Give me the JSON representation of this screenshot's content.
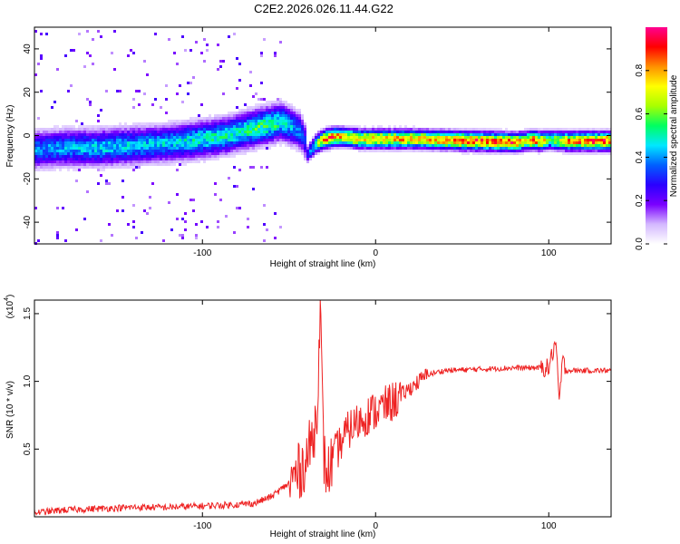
{
  "title": "C2E2.2026.026.11.44.G22",
  "chart_data": [
    {
      "type": "heatmap",
      "name": "spectrogram",
      "xlabel": "Height of straight line (km)",
      "ylabel": "Frequency (Hz)",
      "xlim": [
        -197,
        136
      ],
      "ylim": [
        -50,
        50
      ],
      "xticks": [
        -100,
        0,
        100
      ],
      "xtick_labels": [
        "-100",
        "0",
        "100"
      ],
      "yticks": [
        -40,
        -20,
        0,
        20,
        40
      ],
      "ytick_labels": [
        "-40",
        "-20",
        "0",
        "20",
        "40"
      ],
      "colorbar": {
        "label": "Normalized spectral amplitude",
        "range": [
          0,
          1
        ],
        "ticks": [
          0,
          0.2,
          0.4,
          0.6,
          0.8
        ],
        "tick_labels": [
          "0.0",
          "0.2",
          "0.4",
          "0.6",
          "0.8"
        ],
        "colormap": [
          "#ffffff",
          "#d4b8ff",
          "#7a00ff",
          "#2a00ff",
          "#0060ff",
          "#00e8ff",
          "#00ff60",
          "#a8ff00",
          "#ffff00",
          "#ff9000",
          "#ff0000",
          "#ff0090"
        ]
      },
      "ridge": {
        "x": [
          -197,
          -180,
          -160,
          -140,
          -120,
          -100,
          -90,
          -80,
          -70,
          -60,
          -55,
          -50,
          -45,
          -42,
          -40,
          -38,
          -35,
          -30,
          -25,
          -20,
          -10,
          0,
          20,
          40,
          60,
          80,
          85,
          90,
          95,
          100,
          110,
          120,
          136
        ],
        "freq": [
          -6,
          -5,
          -5,
          -4,
          -3,
          -1,
          0,
          2,
          4,
          6,
          7,
          5,
          3,
          0,
          -8,
          -6,
          -3,
          -1,
          0,
          0,
          -1,
          -1,
          -1,
          -1.5,
          -2,
          -2.5,
          -2,
          -1.5,
          -2,
          -1.5,
          -2,
          -2,
          -2
        ],
        "amplitude": [
          0.4,
          0.42,
          0.45,
          0.45,
          0.45,
          0.5,
          0.5,
          0.5,
          0.55,
          0.55,
          0.5,
          0.45,
          0.4,
          0.3,
          0.3,
          0.4,
          0.6,
          0.85,
          0.85,
          0.8,
          0.8,
          0.8,
          0.8,
          0.85,
          0.9,
          0.9,
          0.7,
          0.9,
          0.8,
          0.6,
          0.85,
          0.9,
          0.9
        ]
      }
    },
    {
      "type": "line",
      "name": "snr",
      "xlabel": "Height of straight line (km)",
      "ylabel": "SNR (10 * v/v)",
      "scale_label": "(x10",
      "scale_exp": "4",
      "color": "#ee2222",
      "xlim": [
        -197,
        136
      ],
      "ylim": [
        0,
        1.6
      ],
      "xticks": [
        -100,
        0,
        100
      ],
      "xtick_labels": [
        "-100",
        "0",
        "100"
      ],
      "yticks": [
        0.5,
        1.0,
        1.5
      ],
      "ytick_labels": [
        "0.5",
        "1.0",
        "1.5"
      ],
      "x": [
        -197,
        -180,
        -160,
        -140,
        -120,
        -100,
        -80,
        -70,
        -60,
        -50,
        -45,
        -40,
        -36,
        -34,
        -32,
        -30,
        -28,
        -25,
        -20,
        -15,
        -10,
        -5,
        0,
        10,
        15,
        20,
        25,
        30,
        40,
        60,
        80,
        100,
        104,
        106,
        108,
        110,
        120,
        136
      ],
      "y": [
        0.03,
        0.05,
        0.06,
        0.07,
        0.07,
        0.08,
        0.09,
        0.1,
        0.15,
        0.25,
        0.32,
        0.42,
        0.6,
        0.75,
        1.55,
        0.45,
        0.3,
        0.42,
        0.55,
        0.65,
        0.7,
        0.75,
        0.78,
        0.85,
        0.9,
        0.95,
        1.0,
        1.05,
        1.08,
        1.09,
        1.1,
        1.1,
        1.3,
        0.85,
        1.15,
        1.08,
        1.08,
        1.08
      ]
    }
  ]
}
